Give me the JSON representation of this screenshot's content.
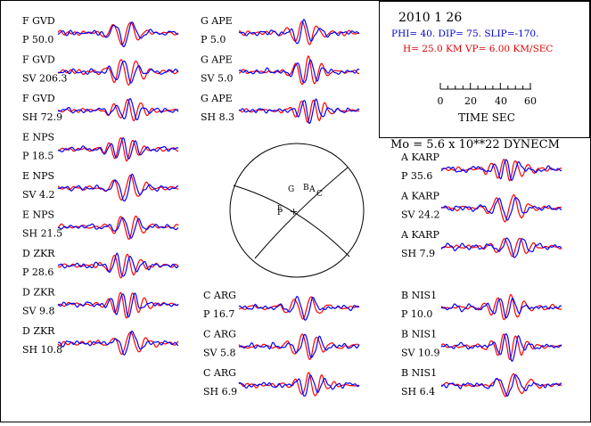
{
  "header": {
    "date": "2010  1 26",
    "mechanism": "PHI=  40. DIP= 75. SLIP=-170.",
    "depth_velocity": "H= 25.0 KM  VP= 6.00 KM/SEC",
    "moment": "Mo =  5.6 x 10**22 DYNECM",
    "scale_ticks": [
      "0",
      "20",
      "40",
      "60"
    ],
    "scale_label": "TIME  SEC",
    "colors": {
      "mechanism": "#0000cc",
      "depth_velocity": "#dd0000"
    }
  },
  "colors": {
    "observed": "#0000ff",
    "synthetic": "#ff0000"
  },
  "traces": [
    {
      "station": "F GVD",
      "phase": "P",
      "amp": "50.0"
    },
    {
      "station": "F GVD",
      "phase": "SV",
      "amp": "206.3"
    },
    {
      "station": "F GVD",
      "phase": "SH",
      "amp": "72.9"
    },
    {
      "station": "E NPS",
      "phase": "P",
      "amp": "18.5"
    },
    {
      "station": "E NPS",
      "phase": "SV",
      "amp": "4.2"
    },
    {
      "station": "E NPS",
      "phase": "SH",
      "amp": "21.5"
    },
    {
      "station": "D ZKR",
      "phase": "P",
      "amp": "28.6"
    },
    {
      "station": "D ZKR",
      "phase": "SV",
      "amp": "9.8"
    },
    {
      "station": "D ZKR",
      "phase": "SH",
      "amp": "10.8"
    },
    {
      "station": "G APE",
      "phase": "P",
      "amp": "5.0"
    },
    {
      "station": "G APE",
      "phase": "SV",
      "amp": "5.0"
    },
    {
      "station": "G APE",
      "phase": "SH",
      "amp": "8.3"
    },
    {
      "station": "C ARG",
      "phase": "P",
      "amp": "16.7"
    },
    {
      "station": "C ARG",
      "phase": "SV",
      "amp": "5.8"
    },
    {
      "station": "C ARG",
      "phase": "SH",
      "amp": "6.9"
    },
    {
      "station": "A KARP",
      "phase": "P",
      "amp": "35.6"
    },
    {
      "station": "A KARP",
      "phase": "SV",
      "amp": "24.2"
    },
    {
      "station": "A KARP",
      "phase": "SH",
      "amp": "7.9"
    },
    {
      "station": "B NIS1",
      "phase": "P",
      "amp": "10.0"
    },
    {
      "station": "B NIS1",
      "phase": "SV",
      "amp": "10.9"
    },
    {
      "station": "B NIS1",
      "phase": "SH",
      "amp": "6.4"
    }
  ],
  "focal_sphere": {
    "labels": [
      "G",
      "B",
      "A",
      "C",
      "E",
      "P",
      "+"
    ]
  }
}
